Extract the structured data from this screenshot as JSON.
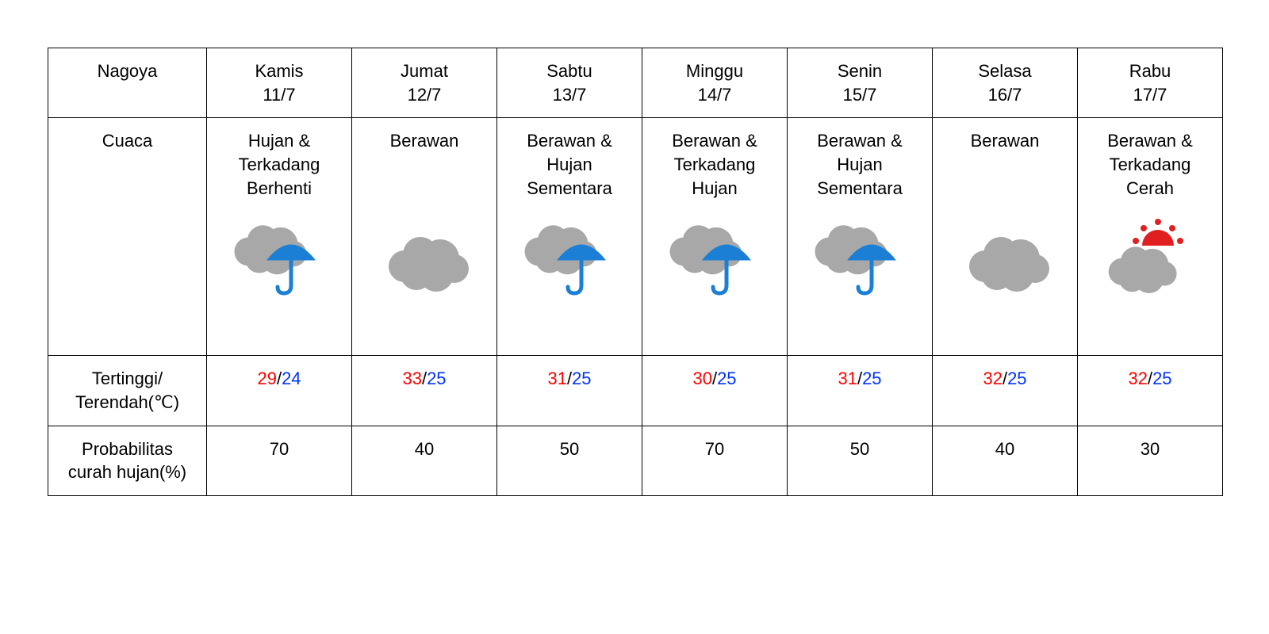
{
  "table": {
    "city": "Nagoya",
    "row_labels": {
      "weather": "Cuaca",
      "temp": "Tertinggi/\nTerendah(℃)",
      "precip": "Probabilitas\ncurah hujan(%)"
    },
    "colors": {
      "high": "#ff0000",
      "low": "#0033ff",
      "cloud": "#a8a8a8",
      "umbrella": "#1c7fd6",
      "sun": "#e02020",
      "border": "#000000",
      "background": "#ffffff",
      "text": "#000000"
    },
    "font_size_pt": 16,
    "days": [
      {
        "dow": "Kamis",
        "date": "11/7",
        "weather": "Hujan &\nTerkadang\nBerhenti",
        "icon": "cloud-rain",
        "high": 29,
        "low": 24,
        "precip": 70
      },
      {
        "dow": "Jumat",
        "date": "12/7",
        "weather": "Berawan",
        "icon": "cloud",
        "high": 33,
        "low": 25,
        "precip": 40
      },
      {
        "dow": "Sabtu",
        "date": "13/7",
        "weather": "Berawan &\nHujan\nSementara",
        "icon": "cloud-rain",
        "high": 31,
        "low": 25,
        "precip": 50
      },
      {
        "dow": "Minggu",
        "date": "14/7",
        "weather": "Berawan &\nTerkadang\nHujan",
        "icon": "cloud-rain",
        "high": 30,
        "low": 25,
        "precip": 70
      },
      {
        "dow": "Senin",
        "date": "15/7",
        "weather": "Berawan &\nHujan\nSementara",
        "icon": "cloud-rain",
        "high": 31,
        "low": 25,
        "precip": 50
      },
      {
        "dow": "Selasa",
        "date": "16/7",
        "weather": "Berawan",
        "icon": "cloud",
        "high": 32,
        "low": 25,
        "precip": 40
      },
      {
        "dow": "Rabu",
        "date": "17/7",
        "weather": "Berawan &\nTerkadang\nCerah",
        "icon": "cloud-sun",
        "high": 32,
        "low": 25,
        "precip": 30
      }
    ]
  }
}
